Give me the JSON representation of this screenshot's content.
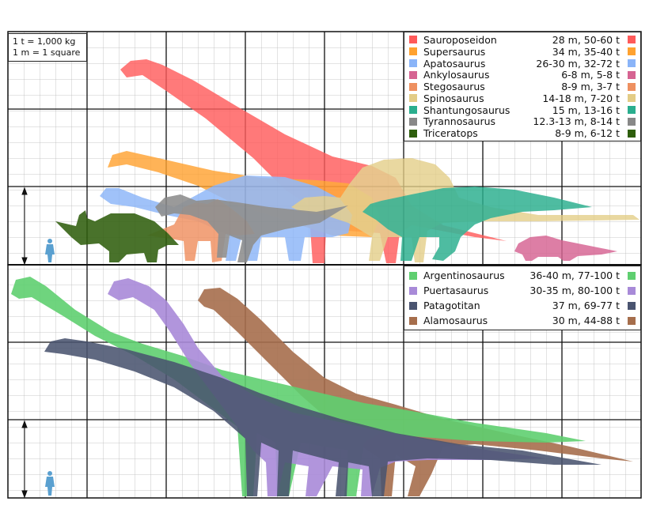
{
  "scale": {
    "line1": "1 t = 1,000 kg",
    "line2": "1 m = 1 square"
  },
  "legend_top": [
    {
      "name": "Sauroposeidon",
      "stats": "28 m, 50-60 t",
      "color": "#ff5a5a"
    },
    {
      "name": "Supersaurus",
      "stats": "34 m, 35-40 t",
      "color": "#ffa230"
    },
    {
      "name": "Apatosaurus",
      "stats": "26-30 m, 32-72 t",
      "color": "#8ab4f8"
    },
    {
      "name": "Ankylosaurus",
      "stats": "6-8 m, 5-8 t",
      "color": "#d66492"
    },
    {
      "name": "Stegosaurus",
      "stats": "8-9 m, 3-7 t",
      "color": "#ee9060"
    },
    {
      "name": "Spinosaurus",
      "stats": "14-18 m, 7-20 t",
      "color": "#e3cc86"
    },
    {
      "name": "Shantungosaurus",
      "stats": "15 m, 13-16 t",
      "color": "#2aae8e"
    },
    {
      "name": "Tyrannosaurus",
      "stats": "12.3-13 m, 8-14 t",
      "color": "#888888"
    },
    {
      "name": "Triceratops",
      "stats": "8-9 m, 6-12 t",
      "color": "#2e5e0d"
    }
  ],
  "legend_bottom": [
    {
      "name": "Argentinosaurus",
      "stats": "36-40 m, 77-100 t",
      "color": "#5fcf70"
    },
    {
      "name": "Puertasaurus",
      "stats": "30-35 m, 80-100 t",
      "color": "#a88ad8"
    },
    {
      "name": "Patagotitan",
      "stats": "37 m, 69-77 t",
      "color": "#4a5470"
    },
    {
      "name": "Alamosaurus",
      "stats": "30 m, 44-88 t",
      "color": "#a66e4c"
    }
  ],
  "colors": {
    "human": "#5aa0d0",
    "grid_minor": "#b9b9b9",
    "grid_major": "#111111"
  }
}
